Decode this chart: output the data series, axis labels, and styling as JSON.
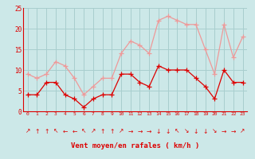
{
  "hours": [
    0,
    1,
    2,
    3,
    4,
    5,
    6,
    7,
    8,
    9,
    10,
    11,
    12,
    13,
    14,
    15,
    16,
    17,
    18,
    19,
    20,
    21,
    22,
    23
  ],
  "wind_avg": [
    4,
    4,
    7,
    7,
    4,
    3,
    1,
    3,
    4,
    4,
    9,
    9,
    7,
    6,
    11,
    10,
    10,
    10,
    8,
    6,
    3,
    10,
    7,
    7
  ],
  "wind_gust": [
    9,
    8,
    9,
    12,
    11,
    8,
    4,
    6,
    8,
    8,
    14,
    17,
    16,
    14,
    22,
    23,
    22,
    21,
    21,
    15,
    9,
    21,
    13,
    18
  ],
  "bg_color": "#cce8e8",
  "grid_color": "#a8cece",
  "avg_color": "#dd0000",
  "gust_color": "#ee9999",
  "axis_color": "#dd0000",
  "xlabel": "Vent moyen/en rafales ( km/h )",
  "xlabel_color": "#dd0000",
  "tick_color": "#dd0000",
  "ylim": [
    0,
    25
  ],
  "yticks": [
    0,
    5,
    10,
    15,
    20,
    25
  ],
  "xlim": [
    -0.5,
    23.5
  ],
  "red_bar_color": "#cc0000",
  "arrow_row_color": "#cc0000"
}
